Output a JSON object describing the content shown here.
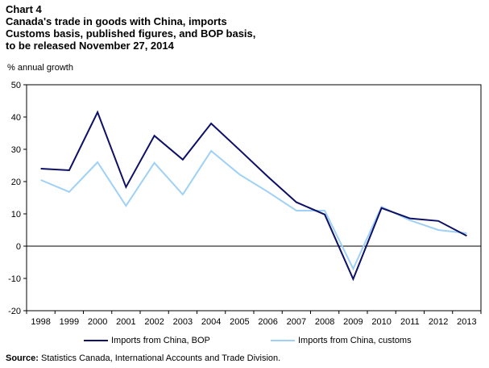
{
  "chart_data": {
    "type": "line",
    "title_lines": [
      "Chart 4",
      "Canada's trade in goods with China, imports",
      "Customs basis, published figures, and BOP basis,",
      "to be released November 27, 2014"
    ],
    "ylabel": "% annual growth",
    "xlabel": "",
    "ylim": [
      -20,
      50
    ],
    "yticks": [
      -20,
      -10,
      0,
      10,
      20,
      30,
      40,
      50
    ],
    "categories": [
      "1998",
      "1999",
      "2000",
      "2001",
      "2002",
      "2003",
      "2004",
      "2005",
      "2006",
      "2007",
      "2008",
      "2009",
      "2010",
      "2011",
      "2012",
      "2013"
    ],
    "grid": false,
    "legend_position": "bottom",
    "series": [
      {
        "name": "Imports from China, BOP",
        "color": "#0d1066",
        "values": [
          24.0,
          23.5,
          41.5,
          18.3,
          34.2,
          26.8,
          38.0,
          29.8,
          21.5,
          13.6,
          9.8,
          -10.2,
          11.8,
          8.6,
          7.8,
          3.2
        ]
      },
      {
        "name": "Imports from China, customs",
        "color": "#9fd0f5",
        "values": [
          20.5,
          16.8,
          26.0,
          12.5,
          25.8,
          16.0,
          29.5,
          22.2,
          16.8,
          11.0,
          11.0,
          -7.0,
          12.2,
          8.0,
          5.0,
          4.0
        ]
      }
    ]
  },
  "source": {
    "label": "Source:",
    "text": " Statistics Canada, International Accounts and Trade Division."
  }
}
